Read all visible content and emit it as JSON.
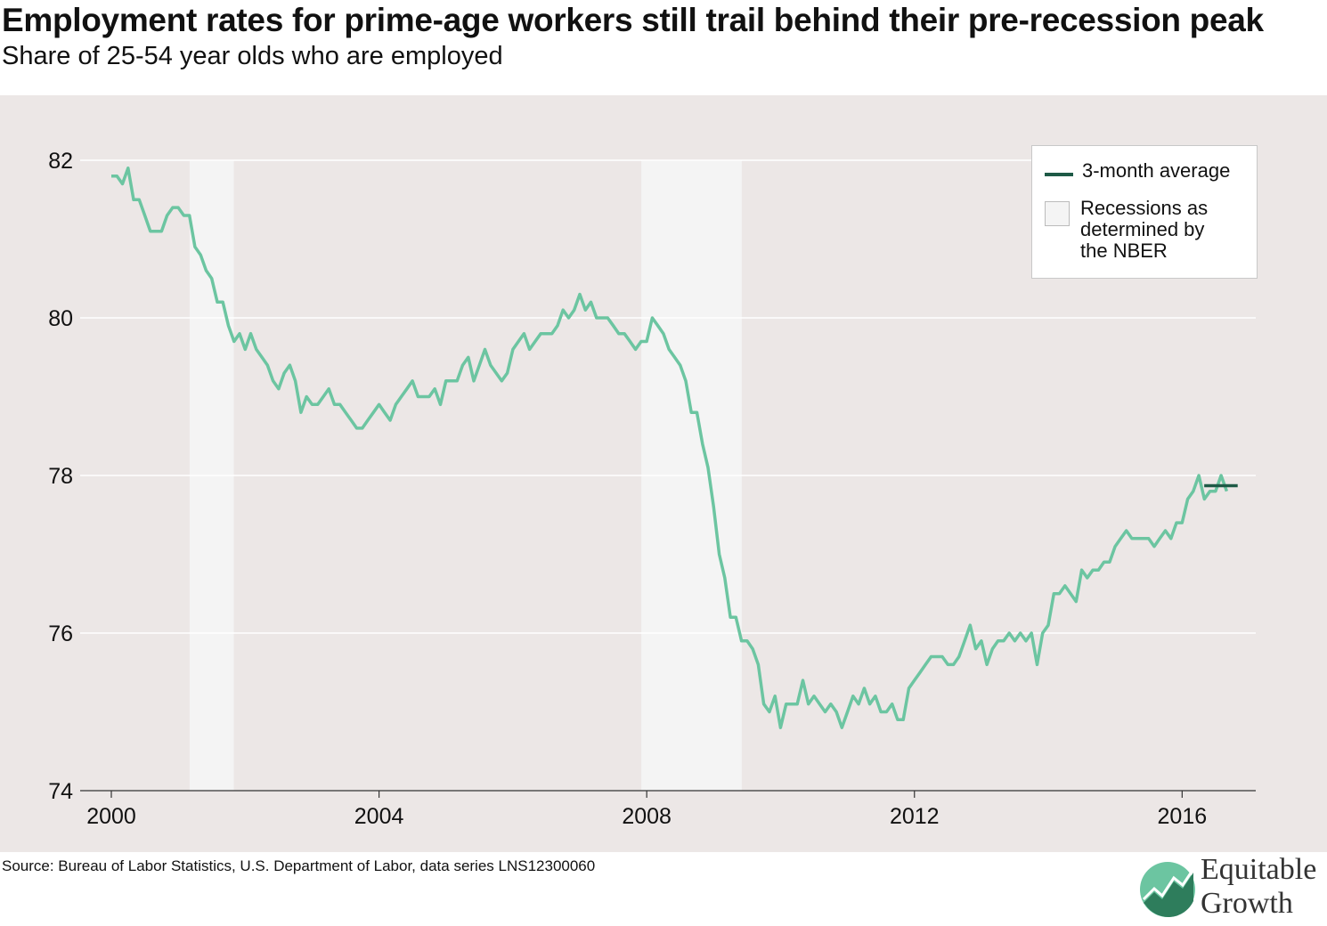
{
  "title": "Employment rates for prime-age workers still trail behind their pre-recession peak",
  "subtitle": "Share of 25-54 year olds who are employed",
  "source": "Source: Bureau of Labor Statistics, U.S. Department of Labor, data series LNS12300060",
  "logo": {
    "line1": "Equitable",
    "line2": "Growth",
    "icon": "growth-chart-logo-icon"
  },
  "colors": {
    "series": "#6cc5a1",
    "average": "#1e5a46",
    "recession": "#f4f4f4",
    "background": "#ece7e6"
  },
  "legend": {
    "average_label": "3-month average",
    "recession_label": "Recessions as determined by the NBER"
  },
  "chart_data": {
    "type": "line",
    "title": "Employment rates for prime-age workers still trail behind their pre-recession peak",
    "subtitle": "Share of 25-54 year olds who are employed",
    "xlabel": "",
    "ylabel": "",
    "xlim": [
      2000,
      2017.1
    ],
    "ylim": [
      74,
      82
    ],
    "x_ticks": [
      "2000",
      "2004",
      "2008",
      "2012",
      "2016"
    ],
    "y_ticks": [
      "74",
      "76",
      "78",
      "80",
      "82"
    ],
    "grid": true,
    "legend_position": "top-right",
    "recessions": [
      {
        "start": 2001.17,
        "end": 2001.83
      },
      {
        "start": 2007.92,
        "end": 2009.42
      }
    ],
    "series": [
      {
        "name": "",
        "x_start": 2000,
        "step": 0.08333,
        "values": [
          81.8,
          81.8,
          81.7,
          81.9,
          81.5,
          81.5,
          81.3,
          81.1,
          81.1,
          81.1,
          81.3,
          81.4,
          81.4,
          81.3,
          81.3,
          80.9,
          80.8,
          80.6,
          80.5,
          80.2,
          80.2,
          79.9,
          79.7,
          79.8,
          79.6,
          79.8,
          79.6,
          79.5,
          79.4,
          79.2,
          79.1,
          79.3,
          79.4,
          79.2,
          78.8,
          79.0,
          78.9,
          78.9,
          79.0,
          79.1,
          78.9,
          78.9,
          78.8,
          78.7,
          78.6,
          78.6,
          78.7,
          78.8,
          78.9,
          78.8,
          78.7,
          78.9,
          79.0,
          79.1,
          79.2,
          79.0,
          79.0,
          79.0,
          79.1,
          78.9,
          79.2,
          79.2,
          79.2,
          79.4,
          79.5,
          79.2,
          79.4,
          79.6,
          79.4,
          79.3,
          79.2,
          79.3,
          79.6,
          79.7,
          79.8,
          79.6,
          79.7,
          79.8,
          79.8,
          79.8,
          79.9,
          80.1,
          80.0,
          80.1,
          80.3,
          80.1,
          80.2,
          80.0,
          80.0,
          80.0,
          79.9,
          79.8,
          79.8,
          79.7,
          79.6,
          79.7,
          79.7,
          80.0,
          79.9,
          79.8,
          79.6,
          79.5,
          79.4,
          79.2,
          78.8,
          78.8,
          78.4,
          78.1,
          77.6,
          77.0,
          76.7,
          76.2,
          76.2,
          75.9,
          75.9,
          75.8,
          75.6,
          75.1,
          75.0,
          75.2,
          74.8,
          75.1,
          75.1,
          75.1,
          75.4,
          75.1,
          75.2,
          75.1,
          75.0,
          75.1,
          75.0,
          74.8,
          75.0,
          75.2,
          75.1,
          75.3,
          75.1,
          75.2,
          75.0,
          75.0,
          75.1,
          74.9,
          74.9,
          75.3,
          75.4,
          75.5,
          75.6,
          75.7,
          75.7,
          75.7,
          75.6,
          75.6,
          75.7,
          75.9,
          76.1,
          75.8,
          75.9,
          75.6,
          75.8,
          75.9,
          75.9,
          76.0,
          75.9,
          76.0,
          75.9,
          76.0,
          75.6,
          76.0,
          76.1,
          76.5,
          76.5,
          76.6,
          76.5,
          76.4,
          76.8,
          76.7,
          76.8,
          76.8,
          76.9,
          76.9,
          77.1,
          77.2,
          77.3,
          77.2,
          77.2,
          77.2,
          77.2,
          77.1,
          77.2,
          77.3,
          77.2,
          77.4,
          77.4,
          77.7,
          77.8,
          78.0,
          77.7,
          77.8,
          77.8,
          78.0,
          77.8
        ]
      },
      {
        "name": "3-month average",
        "x": [
          2016.33,
          2016.83
        ],
        "values": [
          77.87,
          77.87
        ]
      }
    ]
  }
}
